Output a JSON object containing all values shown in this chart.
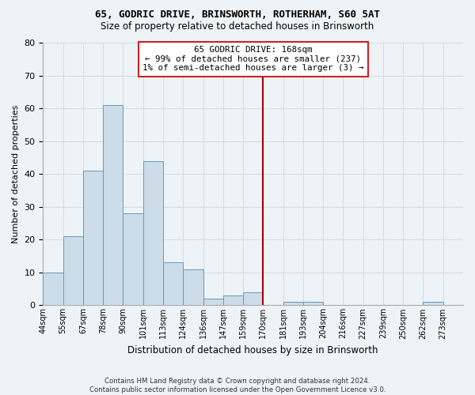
{
  "title1": "65, GODRIC DRIVE, BRINSWORTH, ROTHERHAM, S60 5AT",
  "title2": "Size of property relative to detached houses in Brinsworth",
  "xlabel": "Distribution of detached houses by size in Brinsworth",
  "ylabel": "Number of detached properties",
  "footnote": "Contains HM Land Registry data © Crown copyright and database right 2024.\nContains public sector information licensed under the Open Government Licence v3.0.",
  "bin_labels": [
    "44sqm",
    "55sqm",
    "67sqm",
    "78sqm",
    "90sqm",
    "101sqm",
    "113sqm",
    "124sqm",
    "136sqm",
    "147sqm",
    "159sqm",
    "170sqm",
    "181sqm",
    "193sqm",
    "204sqm",
    "216sqm",
    "227sqm",
    "239sqm",
    "250sqm",
    "262sqm",
    "273sqm"
  ],
  "values": [
    10,
    21,
    41,
    61,
    28,
    44,
    13,
    11,
    2,
    3,
    4,
    0,
    1,
    1,
    0,
    0,
    0,
    0,
    0,
    1,
    0
  ],
  "bar_facecolor": "#ccdce8",
  "bar_edgecolor": "#6699bb",
  "grid_color": "#d0dce8",
  "bg_color": "#eef3f8",
  "vline_index": 11,
  "vline_color": "#aa0000",
  "annotation_text": "65 GODRIC DRIVE: 168sqm\n← 99% of detached houses are smaller (237)\n1% of semi-detached houses are larger (3) →",
  "annotation_box_facecolor": "#ffffff",
  "annotation_box_edgecolor": "#cc2222",
  "ylim": [
    0,
    80
  ],
  "yticks": [
    0,
    10,
    20,
    30,
    40,
    50,
    60,
    70,
    80
  ]
}
